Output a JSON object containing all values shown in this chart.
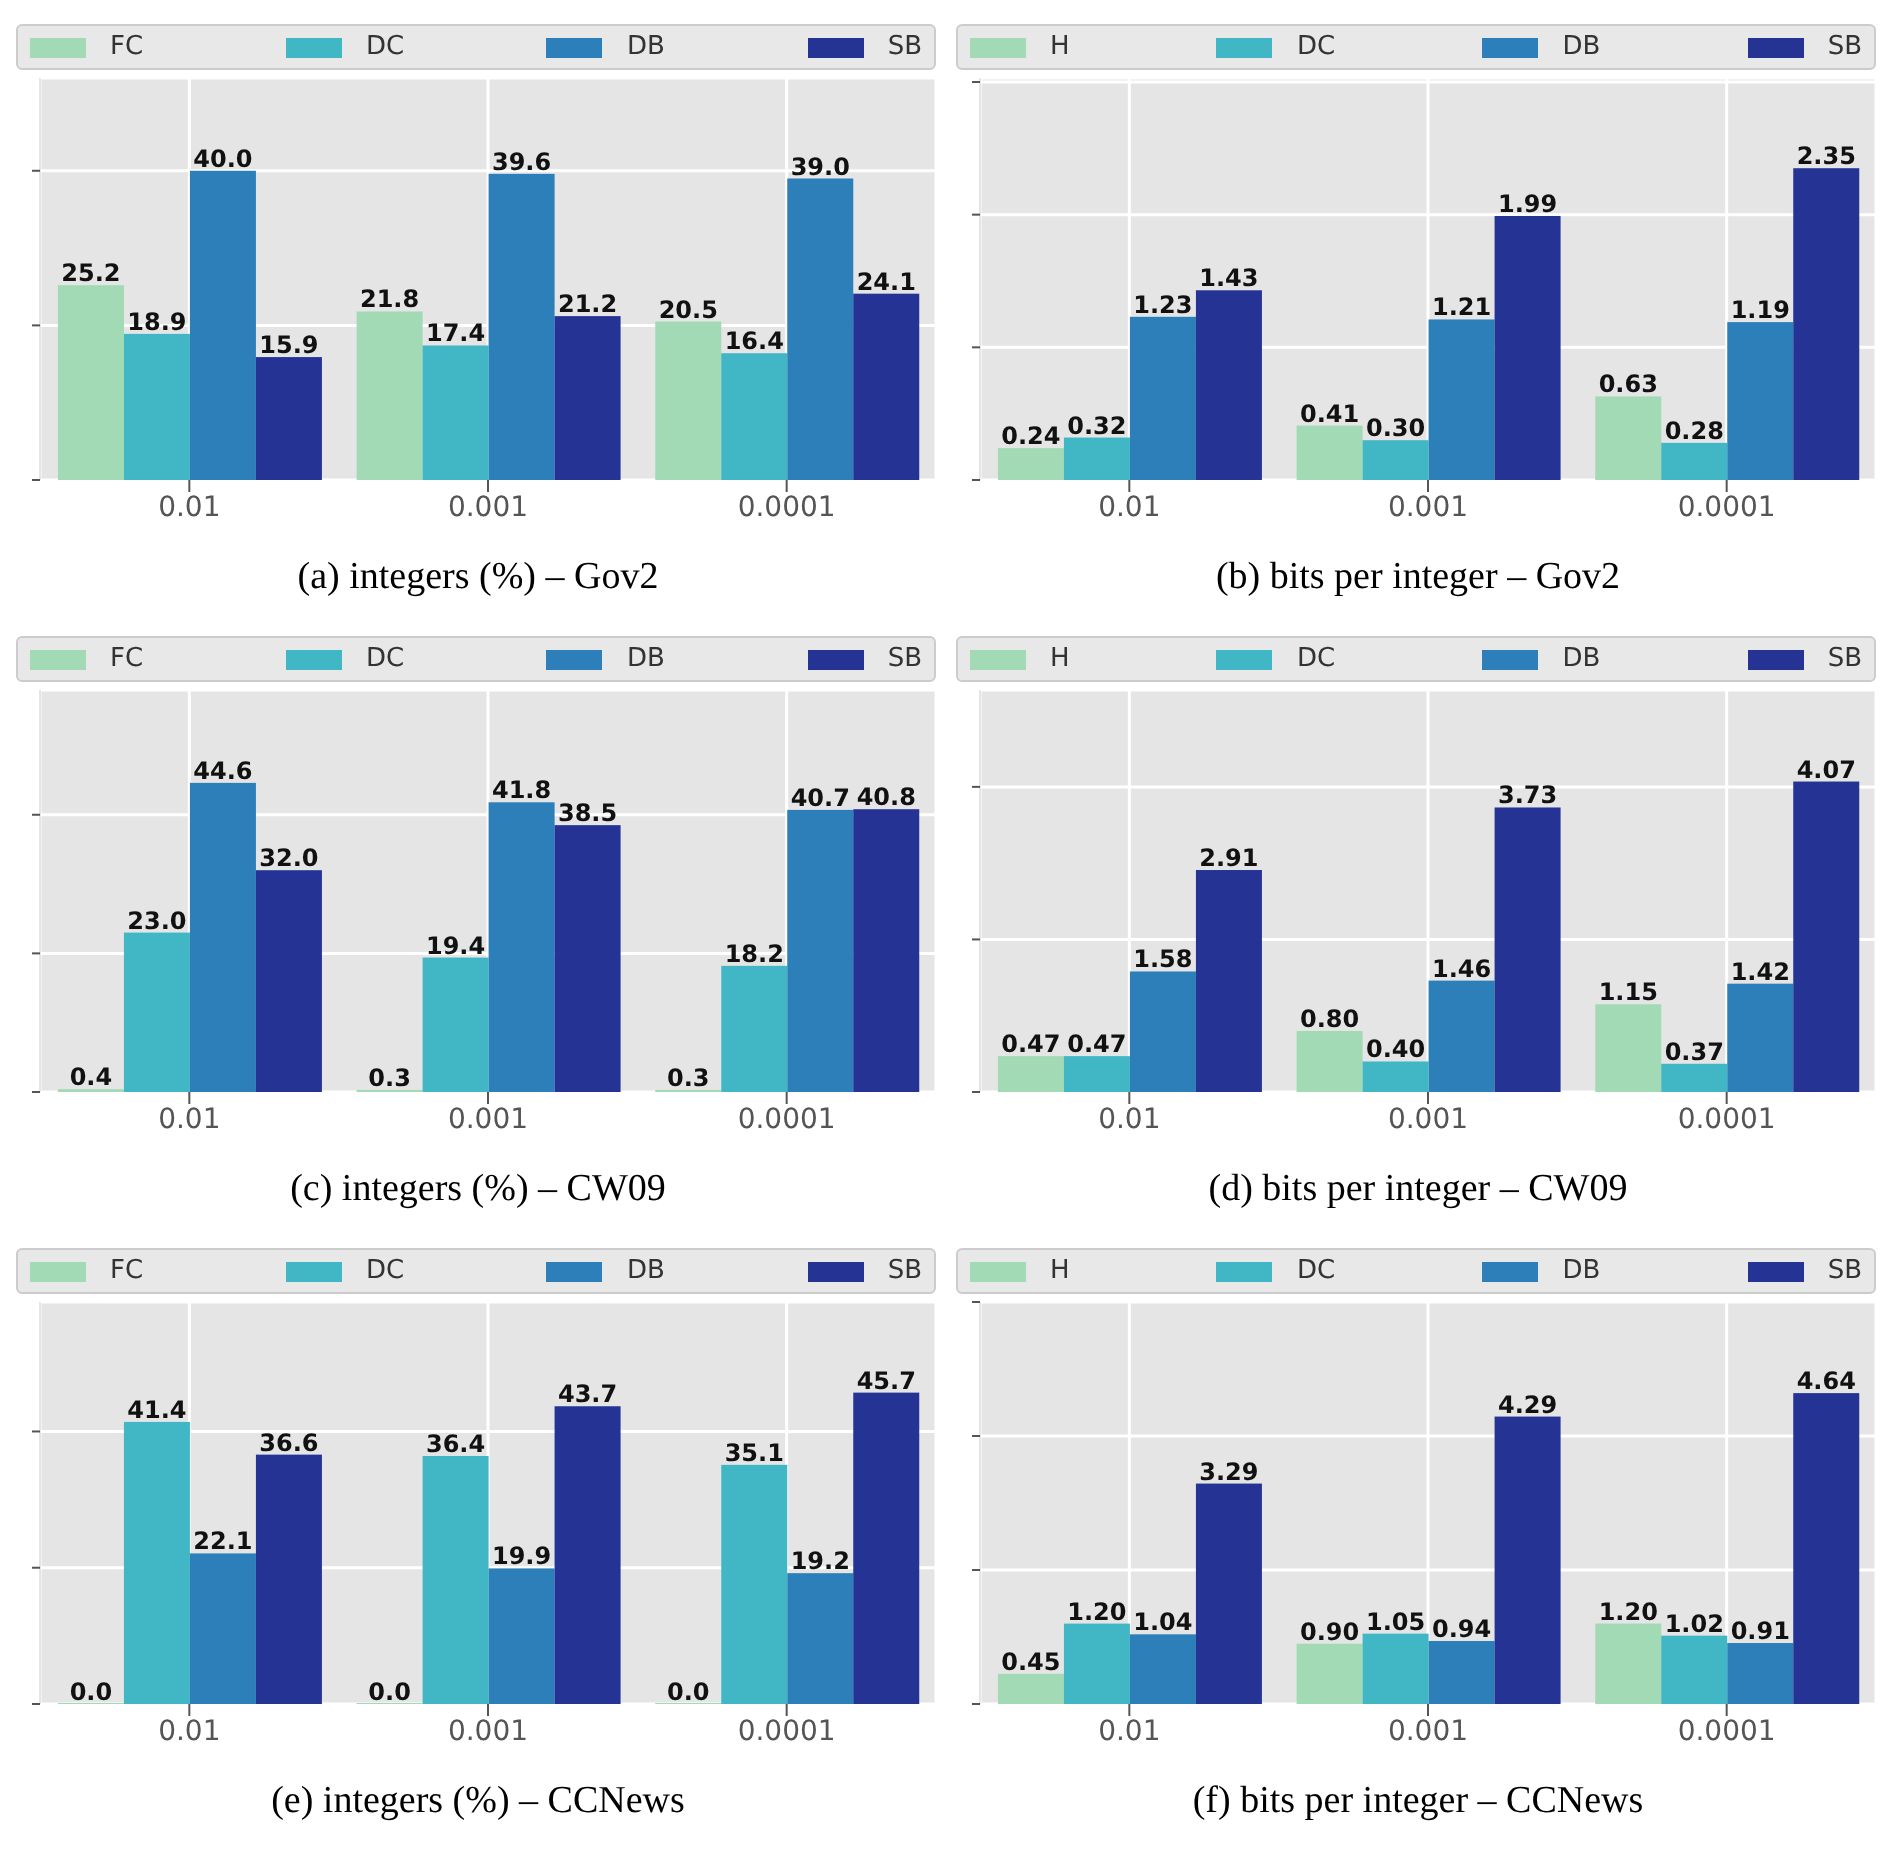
{
  "chart_data": [
    {
      "type": "bar",
      "title": "(a) integers (%) – Gov2",
      "categories": [
        "0.01",
        "0.001",
        "0.0001"
      ],
      "ylim": [
        0,
        52
      ],
      "yticks": [
        {
          "value": 0,
          "label": null
        },
        {
          "value": 20,
          "label": null
        },
        {
          "value": 40,
          "label": null
        }
      ],
      "grid": true,
      "legend": "top",
      "tick_labels": "x",
      "series": [
        {
          "name": "FC",
          "color": "#a1dab4",
          "values": [
            25.2,
            21.8,
            20.5
          ],
          "value_labels": [
            "25.2",
            "21.8",
            "20.5"
          ]
        },
        {
          "name": "DC",
          "color": "#41b6c4",
          "values": [
            18.9,
            17.4,
            16.4
          ],
          "value_labels": [
            "18.9",
            "17.4",
            "16.4"
          ]
        },
        {
          "name": "DB",
          "color": "#2c7fb8",
          "values": [
            40.0,
            39.6,
            39.0
          ],
          "value_labels": [
            "40.0",
            "39.6",
            "39.0"
          ]
        },
        {
          "name": "SB",
          "color": "#253494",
          "values": [
            15.9,
            21.2,
            24.1
          ],
          "value_labels": [
            "15.9",
            "21.2",
            "24.1"
          ]
        }
      ]
    },
    {
      "type": "bar",
      "title": "(b) bits per integer – Gov2",
      "categories": [
        "0.01",
        "0.001",
        "0.0001"
      ],
      "ylim": [
        0,
        3.03
      ],
      "yticks": [
        {
          "value": 0,
          "label": null
        },
        {
          "value": 1,
          "label": null
        },
        {
          "value": 2,
          "label": null
        },
        {
          "value": 3,
          "label": null
        }
      ],
      "grid": true,
      "legend": "top",
      "tick_labels": "x",
      "series": [
        {
          "name": "H",
          "color": "#a1dab4",
          "values": [
            0.24,
            0.41,
            0.63
          ],
          "value_labels": [
            "0.24",
            "0.41",
            "0.63"
          ]
        },
        {
          "name": "DC",
          "color": "#41b6c4",
          "values": [
            0.32,
            0.3,
            0.28
          ],
          "value_labels": [
            "0.32",
            "0.30",
            "0.28"
          ]
        },
        {
          "name": "DB",
          "color": "#2c7fb8",
          "values": [
            1.23,
            1.21,
            1.19
          ],
          "value_labels": [
            "1.23",
            "1.21",
            "1.19"
          ]
        },
        {
          "name": "SB",
          "color": "#253494",
          "values": [
            1.43,
            1.99,
            2.35
          ],
          "value_labels": [
            "1.43",
            "1.99",
            "2.35"
          ]
        }
      ]
    },
    {
      "type": "bar",
      "title": "(c) integers (%) – CW09",
      "categories": [
        "0.01",
        "0.001",
        "0.0001"
      ],
      "ylim": [
        0,
        58
      ],
      "yticks": [
        {
          "value": 0,
          "label": null
        },
        {
          "value": 20,
          "label": null
        },
        {
          "value": 40,
          "label": null
        }
      ],
      "grid": true,
      "legend": "top",
      "tick_labels": "x",
      "series": [
        {
          "name": "FC",
          "color": "#a1dab4",
          "values": [
            0.4,
            0.3,
            0.3
          ],
          "value_labels": [
            "0.4",
            "0.3",
            "0.3"
          ]
        },
        {
          "name": "DC",
          "color": "#41b6c4",
          "values": [
            23.0,
            19.4,
            18.2
          ],
          "value_labels": [
            "23.0",
            "19.4",
            "18.2"
          ]
        },
        {
          "name": "DB",
          "color": "#2c7fb8",
          "values": [
            44.6,
            41.8,
            40.7
          ],
          "value_labels": [
            "44.6",
            "41.8",
            "40.7"
          ]
        },
        {
          "name": "SB",
          "color": "#253494",
          "values": [
            32.0,
            38.5,
            40.8
          ],
          "value_labels": [
            "32.0",
            "38.5",
            "40.8"
          ]
        }
      ]
    },
    {
      "type": "bar",
      "title": "(d) bits per integer – CW09",
      "categories": [
        "0.01",
        "0.001",
        "0.0001"
      ],
      "ylim": [
        0,
        5.27
      ],
      "yticks": [
        {
          "value": 0,
          "label": null
        },
        {
          "value": 2,
          "label": null
        },
        {
          "value": 4,
          "label": null
        }
      ],
      "grid": true,
      "legend": "top",
      "tick_labels": "x",
      "series": [
        {
          "name": "H",
          "color": "#a1dab4",
          "values": [
            0.47,
            0.8,
            1.15
          ],
          "value_labels": [
            "0.47",
            "0.80",
            "1.15"
          ]
        },
        {
          "name": "DC",
          "color": "#41b6c4",
          "values": [
            0.47,
            0.4,
            0.37
          ],
          "value_labels": [
            "0.47",
            "0.40",
            "0.37"
          ]
        },
        {
          "name": "DB",
          "color": "#2c7fb8",
          "values": [
            1.58,
            1.46,
            1.42
          ],
          "value_labels": [
            "1.58",
            "1.46",
            "1.42"
          ]
        },
        {
          "name": "SB",
          "color": "#253494",
          "values": [
            2.91,
            3.73,
            4.07
          ],
          "value_labels": [
            "2.91",
            "3.73",
            "4.07"
          ]
        }
      ]
    },
    {
      "type": "bar",
      "title": "(e) integers (%) – CCNews",
      "categories": [
        "0.01",
        "0.001",
        "0.0001"
      ],
      "ylim": [
        0,
        59
      ],
      "yticks": [
        {
          "value": 0,
          "label": null
        },
        {
          "value": 20,
          "label": null
        },
        {
          "value": 40,
          "label": null
        }
      ],
      "grid": true,
      "legend": "top",
      "tick_labels": "x",
      "series": [
        {
          "name": "FC",
          "color": "#a1dab4",
          "values": [
            0.0,
            0.0,
            0.0
          ],
          "value_labels": [
            "0.0",
            "0.0",
            "0.0"
          ]
        },
        {
          "name": "DC",
          "color": "#41b6c4",
          "values": [
            41.4,
            36.4,
            35.1
          ],
          "value_labels": [
            "41.4",
            "36.4",
            "35.1"
          ]
        },
        {
          "name": "DB",
          "color": "#2c7fb8",
          "values": [
            22.1,
            19.9,
            19.2
          ],
          "value_labels": [
            "22.1",
            "19.9",
            "19.2"
          ]
        },
        {
          "name": "SB",
          "color": "#253494",
          "values": [
            36.6,
            43.7,
            45.7
          ],
          "value_labels": [
            "36.6",
            "43.7",
            "45.7"
          ]
        }
      ]
    },
    {
      "type": "bar",
      "title": "(f) bits per integer – CCNews",
      "categories": [
        "0.01",
        "0.001",
        "0.0001"
      ],
      "ylim": [
        0,
        6
      ],
      "yticks": [
        {
          "value": 0,
          "label": null
        },
        {
          "value": 2,
          "label": null
        },
        {
          "value": 4,
          "label": null
        },
        {
          "value": 6,
          "label": null
        }
      ],
      "grid": true,
      "legend": "top",
      "tick_labels": "x",
      "series": [
        {
          "name": "H",
          "color": "#a1dab4",
          "values": [
            0.45,
            0.9,
            1.2
          ],
          "value_labels": [
            "0.45",
            "0.90",
            "1.20"
          ]
        },
        {
          "name": "DC",
          "color": "#41b6c4",
          "values": [
            1.2,
            1.05,
            1.02
          ],
          "value_labels": [
            "1.20",
            "1.05",
            "1.02"
          ]
        },
        {
          "name": "DB",
          "color": "#2c7fb8",
          "values": [
            1.04,
            0.94,
            0.91
          ],
          "value_labels": [
            "1.04",
            "0.94",
            "0.91"
          ]
        },
        {
          "name": "SB",
          "color": "#253494",
          "values": [
            3.29,
            4.29,
            4.64
          ],
          "value_labels": [
            "3.29",
            "4.29",
            "4.64"
          ]
        }
      ]
    }
  ]
}
